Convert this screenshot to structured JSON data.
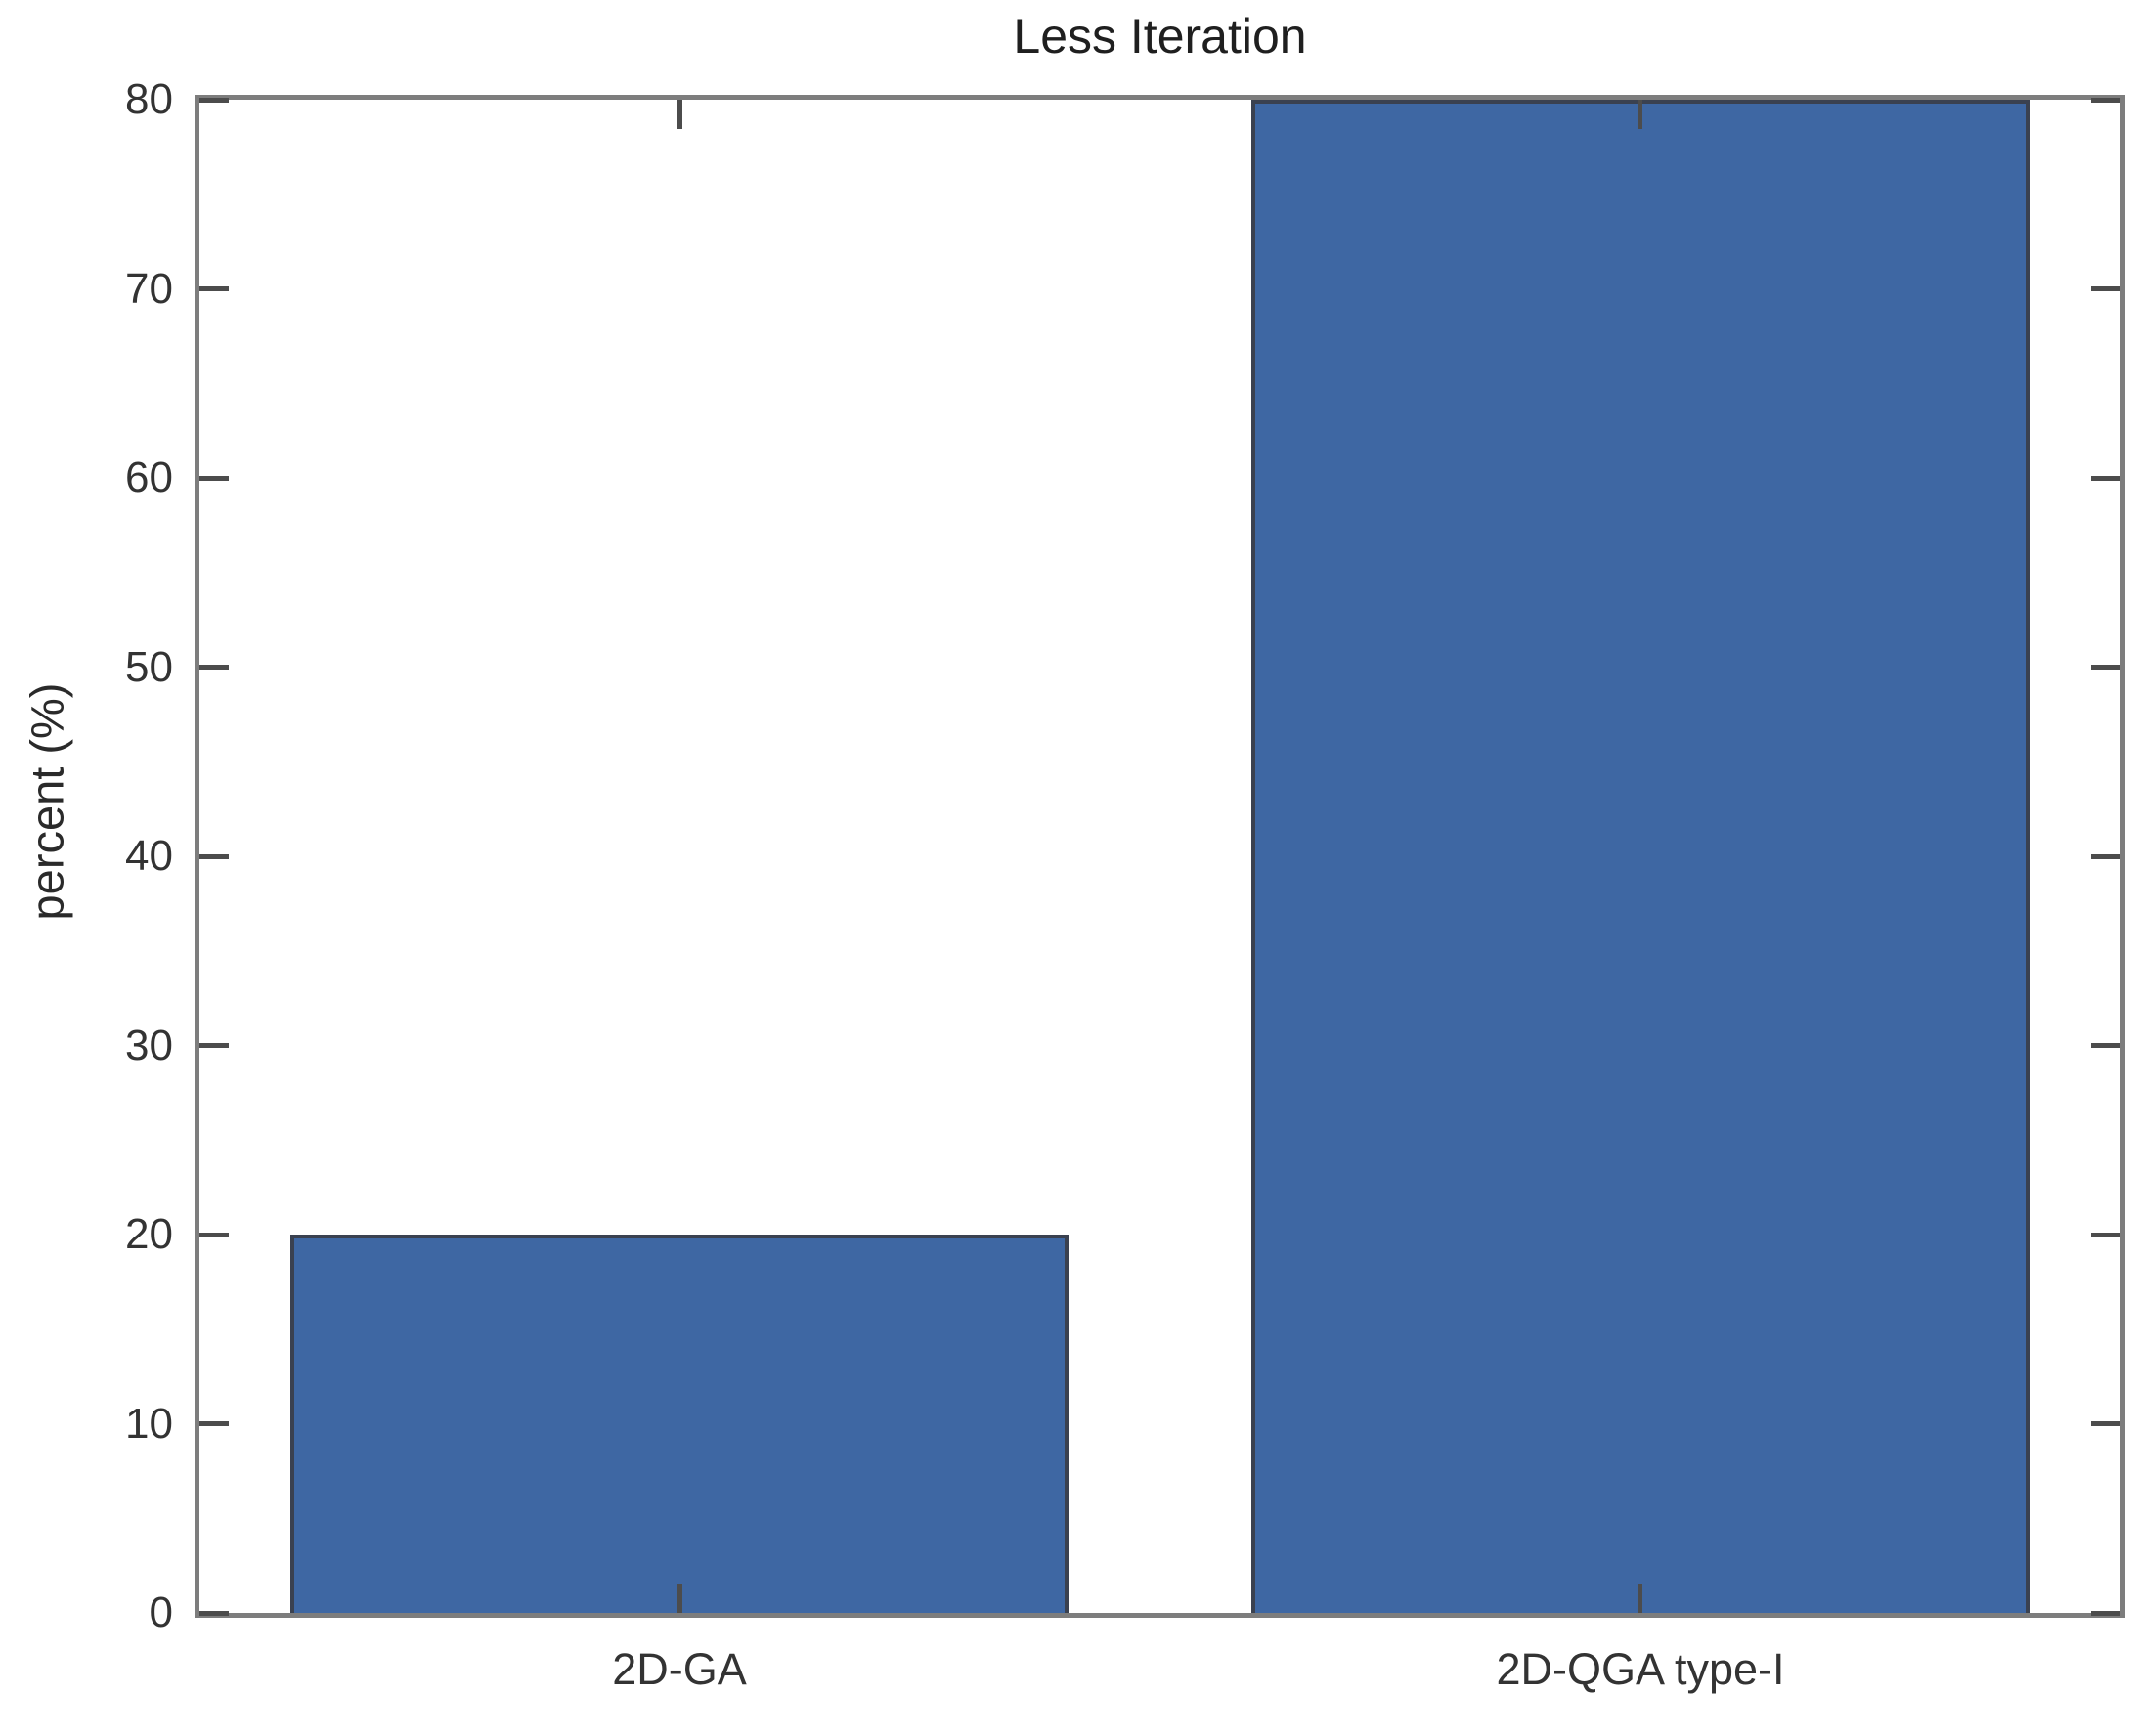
{
  "chart_data": {
    "type": "bar",
    "title": "Less Iteration",
    "xlabel": "",
    "ylabel": "percent (%)",
    "categories": [
      "2D-GA",
      "2D-QGA type-I"
    ],
    "values": [
      20,
      80
    ],
    "ylim": [
      0,
      80
    ],
    "yticks": [
      0,
      10,
      20,
      30,
      40,
      50,
      60,
      70,
      80
    ],
    "grid": false,
    "legend": "none",
    "bar_color": "#3e67a3",
    "bar_edge_color": "#3a4150",
    "axis_box_color": "#7d7d7d",
    "tick_color": "#4c4c4c",
    "tick_direction": "in",
    "text_color": "#333333"
  }
}
